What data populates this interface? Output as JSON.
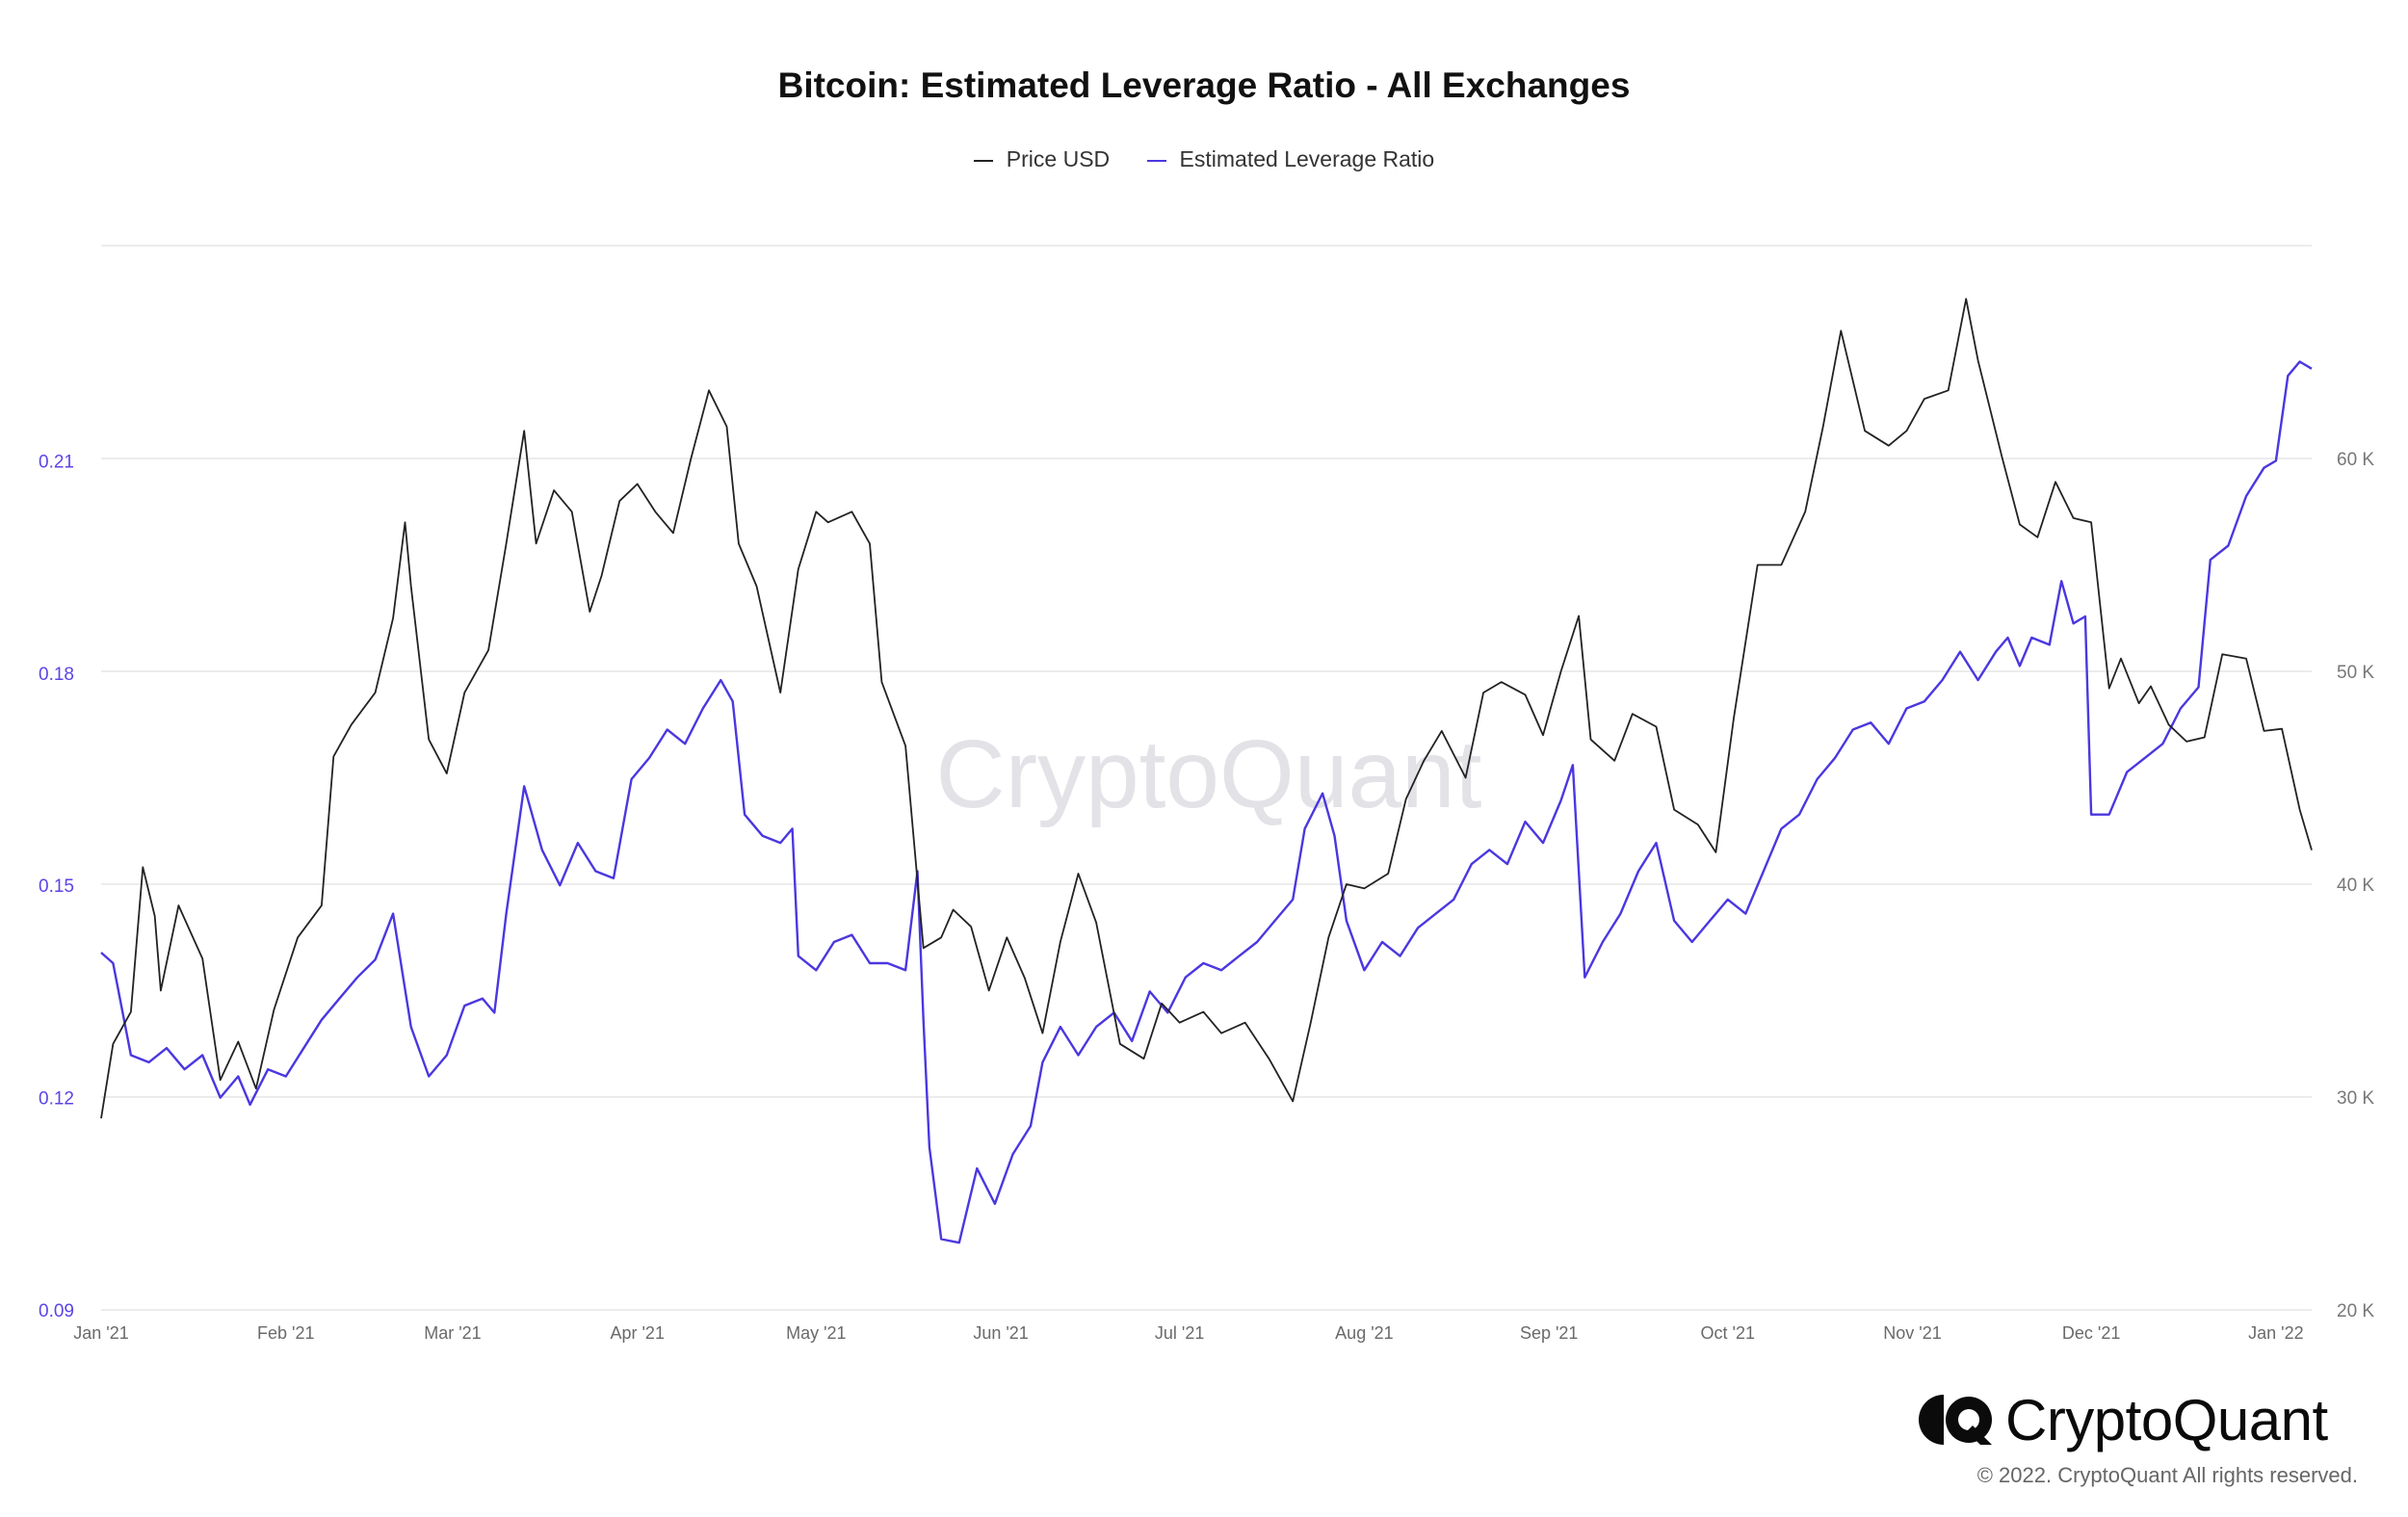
{
  "chart_data": {
    "type": "line",
    "title": "Bitcoin: Estimated Leverage Ratio - All Exchanges",
    "legend_position": "top-center",
    "grid": true,
    "colors": {
      "price": "#222222",
      "leverage": "#4b37e0",
      "left_axis_text": "#5b45e6",
      "right_axis_text": "#777777"
    },
    "x_ticks": [
      {
        "date": "2021-01-01",
        "label": "Jan '21"
      },
      {
        "date": "2021-02-01",
        "label": "Feb '21"
      },
      {
        "date": "2021-03-01",
        "label": "Mar '21"
      },
      {
        "date": "2021-04-01",
        "label": "Apr '21"
      },
      {
        "date": "2021-05-01",
        "label": "May '21"
      },
      {
        "date": "2021-06-01",
        "label": "Jun '21"
      },
      {
        "date": "2021-07-01",
        "label": "Jul '21"
      },
      {
        "date": "2021-08-01",
        "label": "Aug '21"
      },
      {
        "date": "2021-09-01",
        "label": "Sep '21"
      },
      {
        "date": "2021-10-01",
        "label": "Oct '21"
      },
      {
        "date": "2021-11-01",
        "label": "Nov '21"
      },
      {
        "date": "2021-12-01",
        "label": "Dec '21"
      },
      {
        "date": "2022-01-01",
        "label": "Jan '22"
      }
    ],
    "xlim": [
      "2021-01-01",
      "2022-01-07"
    ],
    "y_left": {
      "ticks": [
        "0.09",
        "0.12",
        "0.15",
        "0.18",
        "0.21"
      ],
      "range": [
        0.09,
        0.2404
      ]
    },
    "y_right": {
      "ticks": [
        "20 K",
        "30 K",
        "40 K",
        "50 K",
        "60 K"
      ],
      "range": [
        20000,
        70000
      ]
    },
    "series": [
      {
        "name": "Price USD",
        "axis": "right",
        "points": [
          [
            "2021-01-01",
            29000
          ],
          [
            "2021-01-03",
            32500
          ],
          [
            "2021-01-06",
            34000
          ],
          [
            "2021-01-08",
            40800
          ],
          [
            "2021-01-10",
            38500
          ],
          [
            "2021-01-11",
            35000
          ],
          [
            "2021-01-14",
            39000
          ],
          [
            "2021-01-18",
            36500
          ],
          [
            "2021-01-21",
            30800
          ],
          [
            "2021-01-24",
            32600
          ],
          [
            "2021-01-27",
            30400
          ],
          [
            "2021-01-30",
            34100
          ],
          [
            "2021-02-03",
            37500
          ],
          [
            "2021-02-07",
            39000
          ],
          [
            "2021-02-09",
            46000
          ],
          [
            "2021-02-12",
            47500
          ],
          [
            "2021-02-16",
            49000
          ],
          [
            "2021-02-19",
            52500
          ],
          [
            "2021-02-21",
            57000
          ],
          [
            "2021-02-22",
            54000
          ],
          [
            "2021-02-25",
            46800
          ],
          [
            "2021-02-28",
            45200
          ],
          [
            "2021-03-03",
            49000
          ],
          [
            "2021-03-07",
            51000
          ],
          [
            "2021-03-10",
            56000
          ],
          [
            "2021-03-13",
            61300
          ],
          [
            "2021-03-15",
            56000
          ],
          [
            "2021-03-18",
            58500
          ],
          [
            "2021-03-21",
            57500
          ],
          [
            "2021-03-24",
            52800
          ],
          [
            "2021-03-26",
            54500
          ],
          [
            "2021-03-29",
            58000
          ],
          [
            "2021-04-01",
            58800
          ],
          [
            "2021-04-04",
            57500
          ],
          [
            "2021-04-07",
            56500
          ],
          [
            "2021-04-10",
            60000
          ],
          [
            "2021-04-13",
            63200
          ],
          [
            "2021-04-16",
            61500
          ],
          [
            "2021-04-18",
            56000
          ],
          [
            "2021-04-21",
            54000
          ],
          [
            "2021-04-25",
            49000
          ],
          [
            "2021-04-28",
            54800
          ],
          [
            "2021-05-01",
            57500
          ],
          [
            "2021-05-03",
            57000
          ],
          [
            "2021-05-07",
            57500
          ],
          [
            "2021-05-10",
            56000
          ],
          [
            "2021-05-12",
            49500
          ],
          [
            "2021-05-16",
            46500
          ],
          [
            "2021-05-19",
            37000
          ],
          [
            "2021-05-22",
            37500
          ],
          [
            "2021-05-24",
            38800
          ],
          [
            "2021-05-27",
            38000
          ],
          [
            "2021-05-30",
            35000
          ],
          [
            "2021-06-02",
            37500
          ],
          [
            "2021-06-05",
            35600
          ],
          [
            "2021-06-08",
            33000
          ],
          [
            "2021-06-11",
            37300
          ],
          [
            "2021-06-14",
            40500
          ],
          [
            "2021-06-17",
            38200
          ],
          [
            "2021-06-21",
            32500
          ],
          [
            "2021-06-25",
            31800
          ],
          [
            "2021-06-28",
            34400
          ],
          [
            "2021-07-01",
            33500
          ],
          [
            "2021-07-05",
            34000
          ],
          [
            "2021-07-08",
            33000
          ],
          [
            "2021-07-12",
            33500
          ],
          [
            "2021-07-16",
            31800
          ],
          [
            "2021-07-20",
            29800
          ],
          [
            "2021-07-23",
            33500
          ],
          [
            "2021-07-26",
            37500
          ],
          [
            "2021-07-29",
            40000
          ],
          [
            "2021-08-01",
            39800
          ],
          [
            "2021-08-05",
            40500
          ],
          [
            "2021-08-08",
            44000
          ],
          [
            "2021-08-11",
            45800
          ],
          [
            "2021-08-14",
            47200
          ],
          [
            "2021-08-18",
            45000
          ],
          [
            "2021-08-21",
            49000
          ],
          [
            "2021-08-24",
            49500
          ],
          [
            "2021-08-28",
            48900
          ],
          [
            "2021-08-31",
            47000
          ],
          [
            "2021-09-03",
            50000
          ],
          [
            "2021-09-06",
            52600
          ],
          [
            "2021-09-08",
            46800
          ],
          [
            "2021-09-12",
            45800
          ],
          [
            "2021-09-15",
            48000
          ],
          [
            "2021-09-19",
            47400
          ],
          [
            "2021-09-22",
            43500
          ],
          [
            "2021-09-26",
            42800
          ],
          [
            "2021-09-29",
            41500
          ],
          [
            "2021-10-02",
            47800
          ],
          [
            "2021-10-06",
            55000
          ],
          [
            "2021-10-10",
            55000
          ],
          [
            "2021-10-14",
            57500
          ],
          [
            "2021-10-17",
            61500
          ],
          [
            "2021-10-20",
            66000
          ],
          [
            "2021-10-24",
            61300
          ],
          [
            "2021-10-28",
            60600
          ],
          [
            "2021-10-31",
            61300
          ],
          [
            "2021-11-03",
            62800
          ],
          [
            "2021-11-07",
            63200
          ],
          [
            "2021-11-10",
            67500
          ],
          [
            "2021-11-12",
            64600
          ],
          [
            "2021-11-16",
            60100
          ],
          [
            "2021-11-19",
            56900
          ],
          [
            "2021-11-22",
            56300
          ],
          [
            "2021-11-25",
            58900
          ],
          [
            "2021-11-28",
            57200
          ],
          [
            "2021-12-01",
            57000
          ],
          [
            "2021-12-04",
            49200
          ],
          [
            "2021-12-06",
            50600
          ],
          [
            "2021-12-09",
            48500
          ],
          [
            "2021-12-11",
            49300
          ],
          [
            "2021-12-14",
            47500
          ],
          [
            "2021-12-17",
            46700
          ],
          [
            "2021-12-20",
            46900
          ],
          [
            "2021-12-23",
            50800
          ],
          [
            "2021-12-27",
            50600
          ],
          [
            "2021-12-30",
            47200
          ],
          [
            "2022-01-02",
            47300
          ],
          [
            "2022-01-05",
            43500
          ],
          [
            "2022-01-07",
            41600
          ]
        ]
      },
      {
        "name": "Estimated Leverage Ratio",
        "axis": "left",
        "points": [
          [
            "2021-01-01",
            0.1405
          ],
          [
            "2021-01-03",
            0.139
          ],
          [
            "2021-01-06",
            0.126
          ],
          [
            "2021-01-09",
            0.125
          ],
          [
            "2021-01-12",
            0.127
          ],
          [
            "2021-01-15",
            0.124
          ],
          [
            "2021-01-18",
            0.126
          ],
          [
            "2021-01-21",
            0.12
          ],
          [
            "2021-01-24",
            0.123
          ],
          [
            "2021-01-26",
            0.119
          ],
          [
            "2021-01-29",
            0.124
          ],
          [
            "2021-02-01",
            0.123
          ],
          [
            "2021-02-04",
            0.127
          ],
          [
            "2021-02-07",
            0.131
          ],
          [
            "2021-02-10",
            0.134
          ],
          [
            "2021-02-13",
            0.137
          ],
          [
            "2021-02-16",
            0.1395
          ],
          [
            "2021-02-19",
            0.146
          ],
          [
            "2021-02-22",
            0.13
          ],
          [
            "2021-02-25",
            0.123
          ],
          [
            "2021-02-28",
            0.126
          ],
          [
            "2021-03-03",
            0.133
          ],
          [
            "2021-03-06",
            0.134
          ],
          [
            "2021-03-08",
            0.132
          ],
          [
            "2021-03-10",
            0.146
          ],
          [
            "2021-03-13",
            0.164
          ],
          [
            "2021-03-16",
            0.155
          ],
          [
            "2021-03-19",
            0.15
          ],
          [
            "2021-03-22",
            0.156
          ],
          [
            "2021-03-25",
            0.152
          ],
          [
            "2021-03-28",
            0.151
          ],
          [
            "2021-03-31",
            0.165
          ],
          [
            "2021-04-03",
            0.168
          ],
          [
            "2021-04-06",
            0.172
          ],
          [
            "2021-04-09",
            0.17
          ],
          [
            "2021-04-12",
            0.175
          ],
          [
            "2021-04-15",
            0.179
          ],
          [
            "2021-04-17",
            0.176
          ],
          [
            "2021-04-19",
            0.16
          ],
          [
            "2021-04-22",
            0.157
          ],
          [
            "2021-04-25",
            0.156
          ],
          [
            "2021-04-27",
            0.158
          ],
          [
            "2021-04-28",
            0.14
          ],
          [
            "2021-05-01",
            0.138
          ],
          [
            "2021-05-04",
            0.142
          ],
          [
            "2021-05-07",
            0.143
          ],
          [
            "2021-05-10",
            0.139
          ],
          [
            "2021-05-13",
            0.139
          ],
          [
            "2021-05-16",
            0.138
          ],
          [
            "2021-05-18",
            0.152
          ],
          [
            "2021-05-19",
            0.131
          ],
          [
            "2021-05-20",
            0.113
          ],
          [
            "2021-05-22",
            0.1
          ],
          [
            "2021-05-25",
            0.0995
          ],
          [
            "2021-05-28",
            0.11
          ],
          [
            "2021-05-31",
            0.105
          ],
          [
            "2021-06-03",
            0.112
          ],
          [
            "2021-06-06",
            0.116
          ],
          [
            "2021-06-08",
            0.125
          ],
          [
            "2021-06-11",
            0.13
          ],
          [
            "2021-06-14",
            0.126
          ],
          [
            "2021-06-17",
            0.13
          ],
          [
            "2021-06-20",
            0.132
          ],
          [
            "2021-06-23",
            0.128
          ],
          [
            "2021-06-26",
            0.135
          ],
          [
            "2021-06-29",
            0.132
          ],
          [
            "2021-07-02",
            0.137
          ],
          [
            "2021-07-05",
            0.139
          ],
          [
            "2021-07-08",
            0.138
          ],
          [
            "2021-07-11",
            0.14
          ],
          [
            "2021-07-14",
            0.142
          ],
          [
            "2021-07-17",
            0.145
          ],
          [
            "2021-07-20",
            0.148
          ],
          [
            "2021-07-22",
            0.158
          ],
          [
            "2021-07-25",
            0.163
          ],
          [
            "2021-07-27",
            0.157
          ],
          [
            "2021-07-29",
            0.145
          ],
          [
            "2021-08-01",
            0.138
          ],
          [
            "2021-08-04",
            0.142
          ],
          [
            "2021-08-07",
            0.14
          ],
          [
            "2021-08-10",
            0.144
          ],
          [
            "2021-08-13",
            0.146
          ],
          [
            "2021-08-16",
            0.148
          ],
          [
            "2021-08-19",
            0.153
          ],
          [
            "2021-08-22",
            0.155
          ],
          [
            "2021-08-25",
            0.153
          ],
          [
            "2021-08-28",
            0.159
          ],
          [
            "2021-08-31",
            0.156
          ],
          [
            "2021-09-03",
            0.162
          ],
          [
            "2021-09-05",
            0.167
          ],
          [
            "2021-09-07",
            0.137
          ],
          [
            "2021-09-10",
            0.142
          ],
          [
            "2021-09-13",
            0.146
          ],
          [
            "2021-09-16",
            0.152
          ],
          [
            "2021-09-19",
            0.156
          ],
          [
            "2021-09-22",
            0.145
          ],
          [
            "2021-09-25",
            0.142
          ],
          [
            "2021-09-28",
            0.145
          ],
          [
            "2021-10-01",
            0.148
          ],
          [
            "2021-10-04",
            0.146
          ],
          [
            "2021-10-07",
            0.152
          ],
          [
            "2021-10-10",
            0.158
          ],
          [
            "2021-10-13",
            0.16
          ],
          [
            "2021-10-16",
            0.165
          ],
          [
            "2021-10-19",
            0.168
          ],
          [
            "2021-10-22",
            0.172
          ],
          [
            "2021-10-25",
            0.173
          ],
          [
            "2021-10-28",
            0.17
          ],
          [
            "2021-10-31",
            0.175
          ],
          [
            "2021-11-03",
            0.176
          ],
          [
            "2021-11-06",
            0.179
          ],
          [
            "2021-11-09",
            0.183
          ],
          [
            "2021-11-12",
            0.179
          ],
          [
            "2021-11-15",
            0.183
          ],
          [
            "2021-11-17",
            0.185
          ],
          [
            "2021-11-19",
            0.181
          ],
          [
            "2021-11-21",
            0.185
          ],
          [
            "2021-11-24",
            0.184
          ],
          [
            "2021-11-26",
            0.193
          ],
          [
            "2021-11-28",
            0.187
          ],
          [
            "2021-11-30",
            0.188
          ],
          [
            "2021-12-01",
            0.16
          ],
          [
            "2021-12-04",
            0.16
          ],
          [
            "2021-12-07",
            0.166
          ],
          [
            "2021-12-10",
            0.168
          ],
          [
            "2021-12-13",
            0.17
          ],
          [
            "2021-12-16",
            0.175
          ],
          [
            "2021-12-19",
            0.178
          ],
          [
            "2021-12-21",
            0.196
          ],
          [
            "2021-12-24",
            0.198
          ],
          [
            "2021-12-27",
            0.205
          ],
          [
            "2021-12-30",
            0.209
          ],
          [
            "2022-01-01",
            0.21
          ],
          [
            "2022-01-03",
            0.222
          ],
          [
            "2022-01-05",
            0.224
          ],
          [
            "2022-01-07",
            0.223
          ]
        ]
      }
    ]
  },
  "watermark": "CryptoQuant",
  "brand": {
    "name": "CryptoQuant",
    "copyright": "© 2022. CryptoQuant All rights reserved."
  }
}
